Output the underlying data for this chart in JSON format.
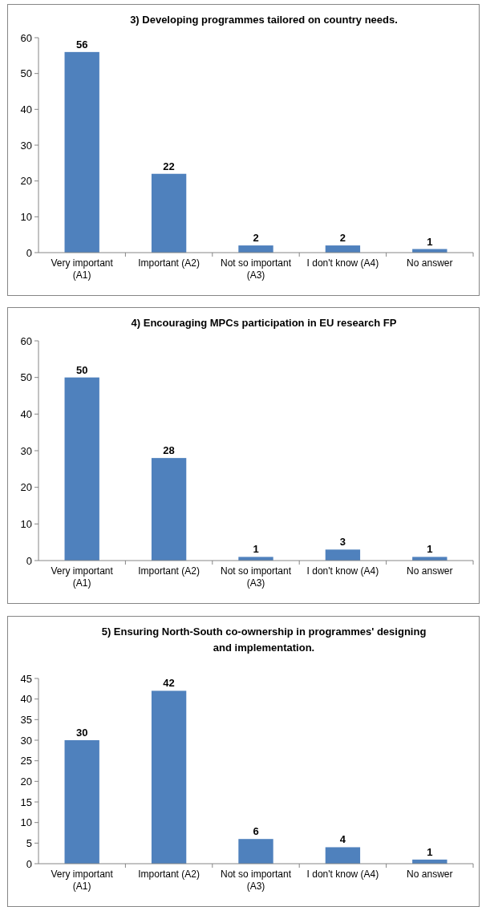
{
  "chart_data": [
    {
      "type": "bar",
      "title": "3) Developing programmes tailored on country needs.",
      "categories": [
        "Very important (A1)",
        "Important (A2)",
        "Not so important (A3)",
        "I don't know (A4)",
        "No answer"
      ],
      "values": [
        56,
        22,
        2,
        2,
        1
      ],
      "color": "#4f81bd",
      "ylim": [
        0,
        60
      ],
      "yticks": [
        0,
        10,
        20,
        30,
        40,
        50,
        60
      ],
      "data_labels": true
    },
    {
      "type": "bar",
      "title": "4) Encouraging MPCs participation in EU research FP",
      "categories": [
        "Very important (A1)",
        "Important (A2)",
        "Not so important (A3)",
        "I don't know (A4)",
        "No answer"
      ],
      "values": [
        50,
        28,
        1,
        3,
        1
      ],
      "color": "#4f81bd",
      "ylim": [
        0,
        60
      ],
      "yticks": [
        0,
        10,
        20,
        30,
        40,
        50,
        60
      ],
      "data_labels": true
    },
    {
      "type": "bar",
      "title": "5) Ensuring North-South co-ownership in programmes' designing and implementation.",
      "categories": [
        "Very important (A1)",
        "Important (A2)",
        "Not so important (A3)",
        "I don't know (A4)",
        "No answer"
      ],
      "values": [
        30,
        42,
        6,
        4,
        1
      ],
      "color": "#4f81bd",
      "ylim": [
        0,
        45
      ],
      "yticks": [
        0,
        5,
        10,
        15,
        20,
        25,
        30,
        35,
        40,
        45
      ],
      "data_labels": true
    }
  ]
}
